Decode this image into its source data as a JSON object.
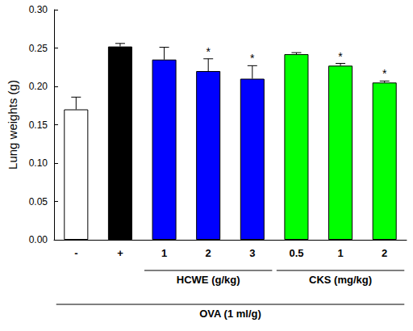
{
  "chart_data": {
    "type": "bar",
    "y_label": "Lung weights (g)",
    "categories": [
      "-",
      "+",
      "1",
      "2",
      "3",
      "0.5",
      "1",
      "2"
    ],
    "values": [
      0.17,
      0.252,
      0.235,
      0.22,
      0.21,
      0.242,
      0.227,
      0.205
    ],
    "errors": [
      0.016,
      0.004,
      0.016,
      0.016,
      0.017,
      0.002,
      0.003,
      0.002
    ],
    "significance": [
      null,
      null,
      null,
      "*",
      "*",
      null,
      "*",
      "*"
    ],
    "colors": [
      "#ffffff",
      "#000000",
      "#0000ff",
      "#0000ff",
      "#0000ff",
      "#00ff00",
      "#00ff00",
      "#00ff00"
    ],
    "groups": [
      {
        "label": "HCWE (g/kg)",
        "from": 2,
        "to": 4
      },
      {
        "label": "CKS (mg/kg)",
        "from": 5,
        "to": 7
      },
      {
        "label": "OVA (1 ml/g)",
        "from": 0,
        "to": 7
      }
    ],
    "ylim": [
      0,
      0.3
    ],
    "yticks": [
      {
        "value": 0,
        "label": "0.00"
      },
      {
        "value": 0.05,
        "label": "0.05"
      },
      {
        "value": 0.1,
        "label": "0.10"
      },
      {
        "value": 0.15,
        "label": "0.15"
      },
      {
        "value": 0.2,
        "label": "0.20"
      },
      {
        "value": 0.25,
        "label": "0.25"
      },
      {
        "value": 0.3,
        "label": "0.30"
      }
    ],
    "grid": false
  }
}
